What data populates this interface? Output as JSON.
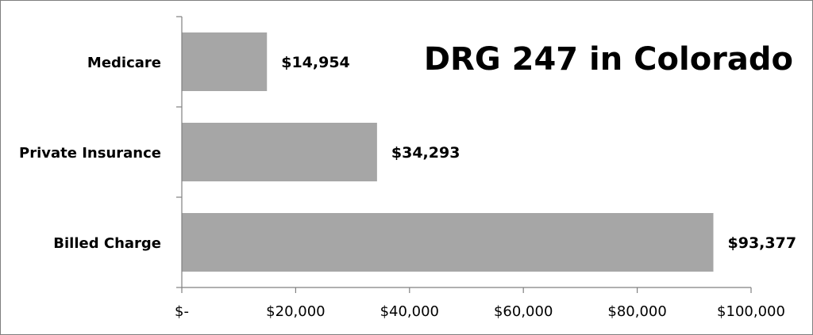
{
  "chart_data": {
    "type": "bar",
    "orientation": "horizontal",
    "title": "DRG 247 in Colorado",
    "xlabel": "",
    "ylabel": "",
    "categories": [
      "Medicare",
      "Private Insurance",
      "Billed Charge"
    ],
    "values": [
      14954,
      34293,
      93377
    ],
    "data_labels": [
      "$14,954",
      "$34,293",
      "$93,377"
    ],
    "xlim": [
      0,
      100000
    ],
    "x_ticks": [
      0,
      20000,
      40000,
      60000,
      80000,
      100000
    ],
    "x_tick_labels": [
      "$-",
      "$20,000",
      "$40,000",
      "$60,000",
      "$80,000",
      "$100,000"
    ],
    "grid": false,
    "legend": "none",
    "bar_color": "#a6a6a6",
    "axis_color": "#808080"
  }
}
